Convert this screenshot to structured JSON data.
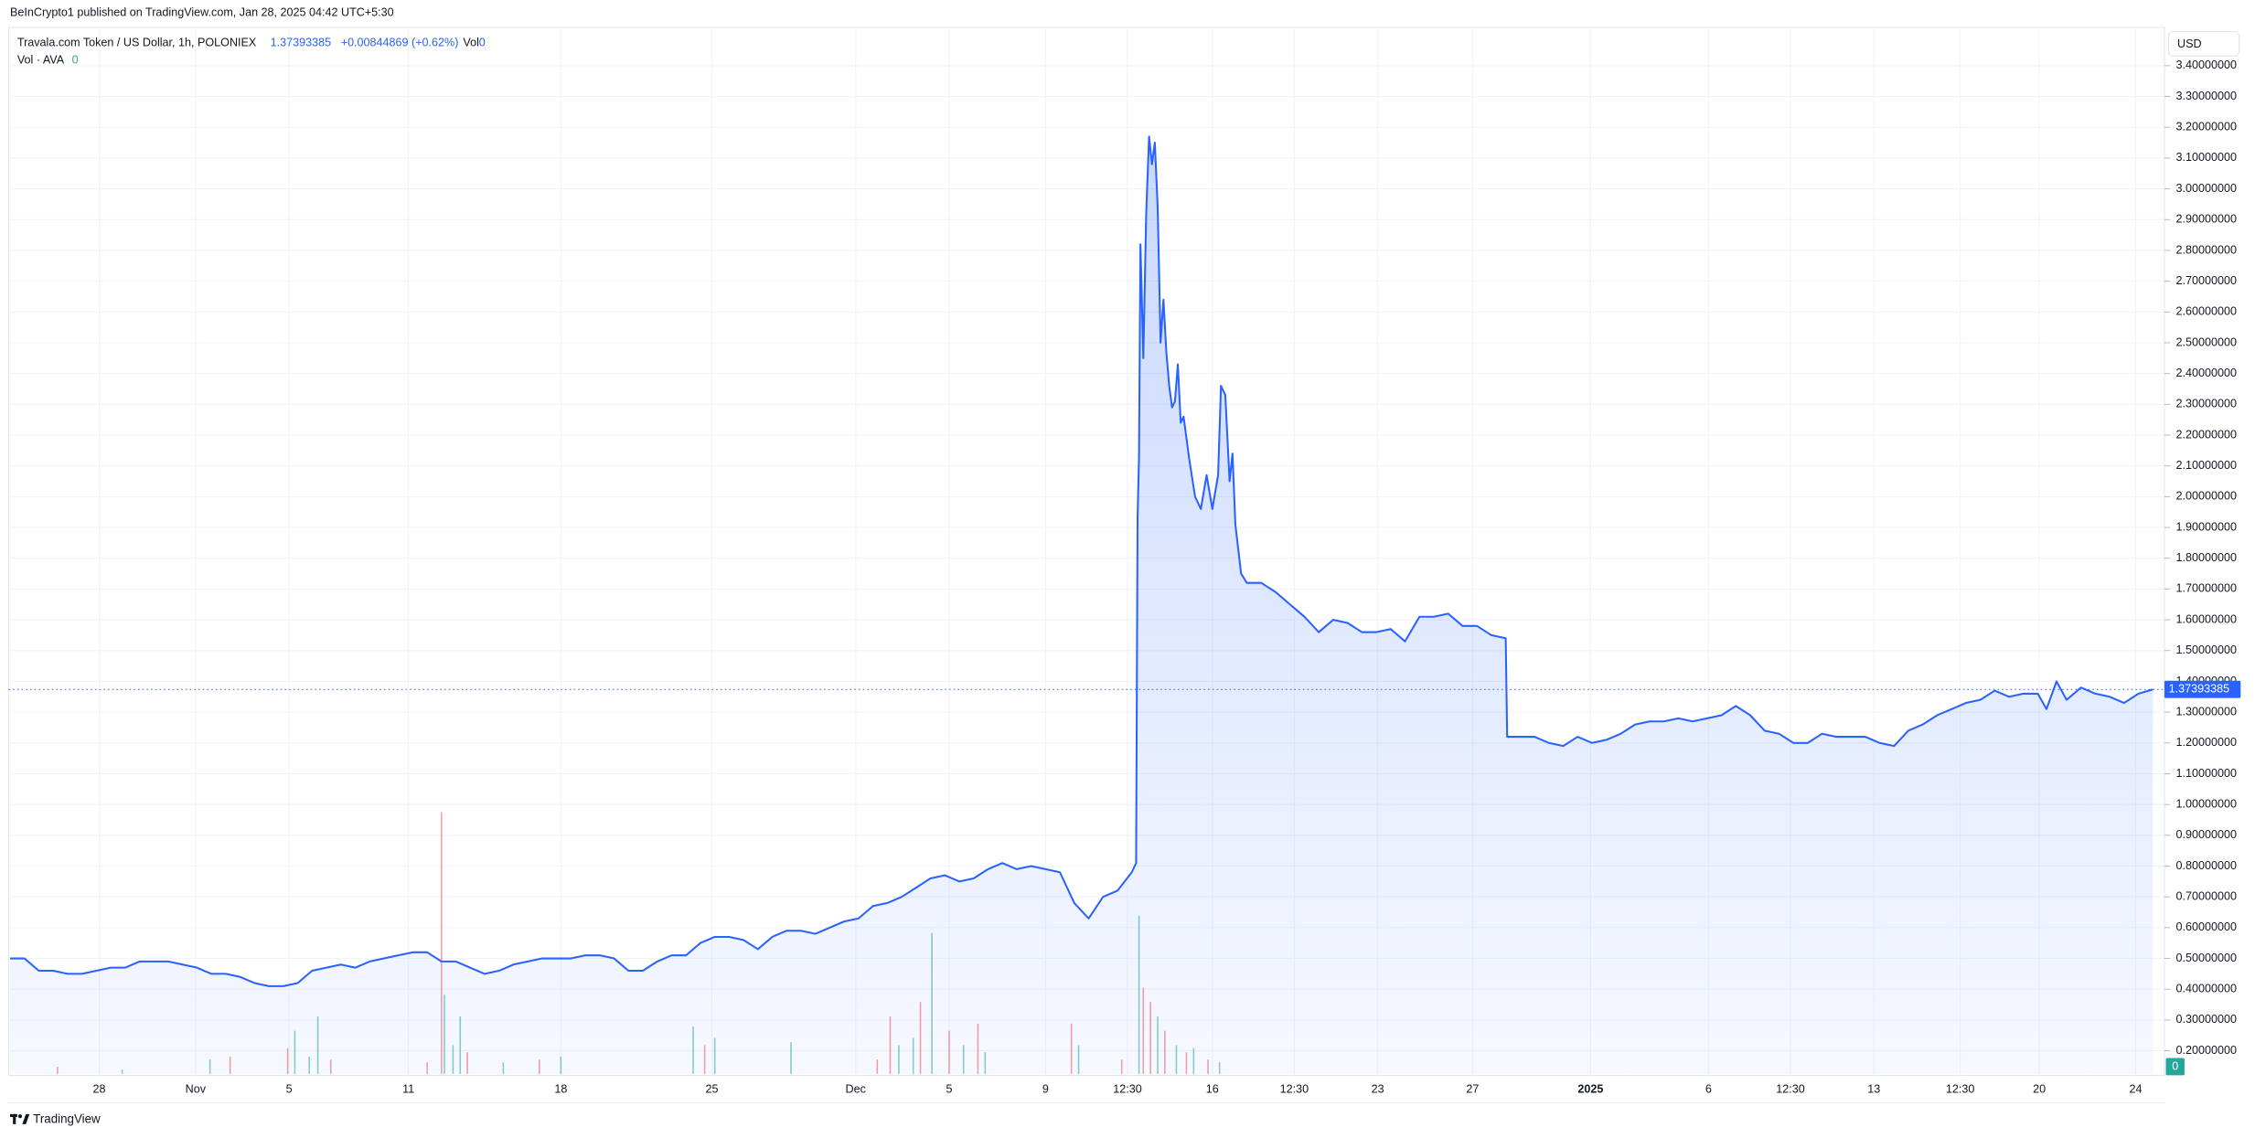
{
  "publisher_line": "BeInCrypto1 published on TradingView.com, Jan 28, 2025 04:42 UTC+5:30",
  "symbol": "Travala.com Token / US Dollar, 1h, POLONIEX",
  "last_price": 1.37393385,
  "change": "+0.00844869 (+0.62%)",
  "vol_label": "Vol",
  "vol_value": 0,
  "vol_indicator": "Vol · AVA",
  "vol_indicator_value": 0,
  "currency": "USD",
  "brand": "TradingView",
  "chart_data": {
    "type": "area",
    "series": [
      {
        "color": "#2962ff",
        "x": [
          0,
          10,
          20,
          30,
          40,
          50,
          60,
          70,
          80,
          90,
          100,
          110,
          120,
          130,
          140,
          150,
          160,
          170,
          180,
          190,
          200,
          210,
          220,
          230,
          240,
          250,
          260,
          270,
          280,
          290,
          300,
          310,
          320,
          330,
          340,
          350,
          360,
          370,
          380,
          390,
          400,
          410,
          420,
          430,
          440,
          450,
          460,
          470,
          480,
          490,
          500,
          510,
          520,
          530,
          540,
          550,
          560,
          570,
          580,
          590,
          600,
          610,
          620,
          630,
          640,
          650,
          660,
          670,
          680,
          690,
          700,
          710,
          720,
          730,
          740,
          750,
          760,
          770,
          780,
          783,
          784,
          785,
          786,
          788,
          790,
          792,
          794,
          796,
          798,
          800,
          802,
          804,
          806,
          808,
          810,
          812,
          814,
          816,
          820,
          824,
          828,
          832,
          836,
          840,
          842,
          845,
          848,
          850,
          852,
          856,
          860,
          870,
          880,
          890,
          900,
          910,
          920,
          930,
          940,
          950,
          960,
          970,
          980,
          990,
          1000,
          1010,
          1020,
          1030,
          1040,
          1041,
          1050,
          1060,
          1070,
          1080,
          1090,
          1100,
          1110,
          1120,
          1130,
          1140,
          1150,
          1160,
          1170,
          1180,
          1190,
          1200,
          1210,
          1220,
          1230,
          1240,
          1250,
          1260,
          1270,
          1280,
          1290,
          1300,
          1310,
          1320,
          1330,
          1340,
          1350,
          1360,
          1370,
          1380,
          1390,
          1400,
          1410,
          1416,
          1423,
          1430,
          1440,
          1450,
          1460,
          1470,
          1480,
          1490
        ],
        "values": [
          0.5,
          0.5,
          0.46,
          0.46,
          0.45,
          0.45,
          0.46,
          0.47,
          0.47,
          0.49,
          0.49,
          0.49,
          0.48,
          0.47,
          0.45,
          0.45,
          0.44,
          0.42,
          0.41,
          0.41,
          0.42,
          0.46,
          0.47,
          0.48,
          0.47,
          0.49,
          0.5,
          0.51,
          0.52,
          0.52,
          0.49,
          0.49,
          0.47,
          0.45,
          0.46,
          0.48,
          0.49,
          0.5,
          0.5,
          0.5,
          0.51,
          0.51,
          0.5,
          0.46,
          0.46,
          0.49,
          0.51,
          0.51,
          0.55,
          0.57,
          0.57,
          0.56,
          0.53,
          0.57,
          0.59,
          0.59,
          0.58,
          0.6,
          0.62,
          0.63,
          0.67,
          0.68,
          0.7,
          0.73,
          0.76,
          0.77,
          0.75,
          0.76,
          0.79,
          0.81,
          0.79,
          0.8,
          0.79,
          0.78,
          0.68,
          0.63,
          0.7,
          0.72,
          0.78,
          0.81,
          1.93,
          2.13,
          2.82,
          2.45,
          2.92,
          3.17,
          3.08,
          3.15,
          2.94,
          2.5,
          2.64,
          2.47,
          2.36,
          2.29,
          2.31,
          2.43,
          2.24,
          2.26,
          2.12,
          2.0,
          1.96,
          2.07,
          1.96,
          2.07,
          2.36,
          2.33,
          2.05,
          2.14,
          1.91,
          1.75,
          1.72,
          1.72,
          1.69,
          1.65,
          1.61,
          1.56,
          1.6,
          1.59,
          1.56,
          1.56,
          1.57,
          1.53,
          1.61,
          1.61,
          1.62,
          1.58,
          1.58,
          1.55,
          1.54,
          1.22,
          1.22,
          1.22,
          1.2,
          1.19,
          1.22,
          1.2,
          1.21,
          1.23,
          1.26,
          1.27,
          1.27,
          1.28,
          1.27,
          1.28,
          1.29,
          1.32,
          1.29,
          1.24,
          1.23,
          1.2,
          1.2,
          1.23,
          1.22,
          1.22,
          1.22,
          1.2,
          1.19,
          1.24,
          1.26,
          1.29,
          1.31,
          1.33,
          1.34,
          1.37,
          1.35,
          1.36,
          1.36,
          1.31,
          1.4,
          1.34,
          1.38,
          1.36,
          1.35,
          1.33,
          1.36,
          1.37393385
        ]
      }
    ],
    "volume": {
      "x": [
        33,
        78,
        139,
        153,
        193,
        198,
        208,
        214,
        223,
        290,
        300,
        302,
        308,
        313,
        318,
        343,
        368,
        383,
        475,
        483,
        490,
        543,
        603,
        612,
        618,
        628,
        633,
        641,
        653,
        663,
        673,
        678,
        738,
        743,
        773,
        785,
        788,
        793,
        798,
        803,
        811,
        818,
        823,
        833,
        841
      ],
      "values": [
        0.025,
        0.015,
        0.05,
        0.06,
        0.09,
        0.15,
        0.06,
        0.2,
        0.05,
        0.04,
        0.91,
        0.275,
        0.1,
        0.2,
        0.075,
        0.04,
        0.05,
        0.06,
        0.165,
        0.1,
        0.125,
        0.11,
        0.05,
        0.2,
        0.1,
        0.125,
        0.25,
        0.49,
        0.15,
        0.1,
        0.175,
        0.075,
        0.175,
        0.1,
        0.05,
        0.55,
        0.3,
        0.25,
        0.2,
        0.15,
        0.1,
        0.075,
        0.09,
        0.05,
        0.04
      ],
      "colors": [
        "#ef5350",
        "#26a69a",
        "#26a69a",
        "#ef5350",
        "#ef5350",
        "#26a69a",
        "#26a69a",
        "#26a69a",
        "#ef5350",
        "#ef5350",
        "#ef5350",
        "#26a69a",
        "#26a69a",
        "#26a69a",
        "#ef5350",
        "#26a69a",
        "#ef5350",
        "#26a69a",
        "#26a69a",
        "#ef5350",
        "#26a69a",
        "#26a69a",
        "#ef5350",
        "#ef5350",
        "#26a69a",
        "#26a69a",
        "#ef5350",
        "#26a69a",
        "#ef5350",
        "#26a69a",
        "#ef5350",
        "#26a69a",
        "#ef5350",
        "#26a69a",
        "#ef5350",
        "#26a69a",
        "#ef5350",
        "#ef5350",
        "#26a69a",
        "#ef5350",
        "#26a69a",
        "#ef5350",
        "#26a69a",
        "#ef5350",
        "#26a69a"
      ],
      "y2lim": [
        0,
        1
      ]
    },
    "xlim": [
      0,
      1490
    ],
    "xticks": [
      {
        "value": 62,
        "label": "28"
      },
      {
        "value": 129,
        "label": "Nov"
      },
      {
        "value": 194,
        "label": "5"
      },
      {
        "value": 277,
        "label": "11"
      },
      {
        "value": 383,
        "label": "18"
      },
      {
        "value": 488,
        "label": "25"
      },
      {
        "value": 588,
        "label": "Dec"
      },
      {
        "value": 653,
        "label": "5"
      },
      {
        "value": 720,
        "label": "9"
      },
      {
        "value": 777,
        "label": "12:30"
      },
      {
        "value": 836,
        "label": "16"
      },
      {
        "value": 893,
        "label": "12:30"
      },
      {
        "value": 951,
        "label": "23"
      },
      {
        "value": 1017,
        "label": "27"
      },
      {
        "value": 1099,
        "label": "2025"
      },
      {
        "value": 1181,
        "label": "6"
      },
      {
        "value": 1238,
        "label": "12:30"
      },
      {
        "value": 1296,
        "label": "13"
      },
      {
        "value": 1356,
        "label": "12:30"
      },
      {
        "value": 1411,
        "label": "20"
      },
      {
        "value": 1478,
        "label": "24"
      }
    ],
    "ylim": [
      0.125,
      3.52
    ],
    "yticks": [
      {
        "value": 0.2,
        "label": "0.20000000"
      },
      {
        "value": 0.3,
        "label": "0.30000000"
      },
      {
        "value": 0.4,
        "label": "0.40000000"
      },
      {
        "value": 0.5,
        "label": "0.50000000"
      },
      {
        "value": 0.6,
        "label": "0.60000000"
      },
      {
        "value": 0.7,
        "label": "0.70000000"
      },
      {
        "value": 0.8,
        "label": "0.80000000"
      },
      {
        "value": 0.9,
        "label": "0.90000000"
      },
      {
        "value": 1.0,
        "label": "1.00000000"
      },
      {
        "value": 1.1,
        "label": "1.10000000"
      },
      {
        "value": 1.2,
        "label": "1.20000000"
      },
      {
        "value": 1.3,
        "label": "1.30000000"
      },
      {
        "value": 1.4,
        "label": "1.40000000"
      },
      {
        "value": 1.5,
        "label": "1.50000000"
      },
      {
        "value": 1.6,
        "label": "1.60000000"
      },
      {
        "value": 1.7,
        "label": "1.70000000"
      },
      {
        "value": 1.8,
        "label": "1.80000000"
      },
      {
        "value": 1.9,
        "label": "1.90000000"
      },
      {
        "value": 2.0,
        "label": "2.00000000"
      },
      {
        "value": 2.1,
        "label": "2.10000000"
      },
      {
        "value": 2.2,
        "label": "2.20000000"
      },
      {
        "value": 2.3,
        "label": "2.30000000"
      },
      {
        "value": 2.4,
        "label": "2.40000000"
      },
      {
        "value": 2.5,
        "label": "2.50000000"
      },
      {
        "value": 2.6,
        "label": "2.60000000"
      },
      {
        "value": 2.7,
        "label": "2.70000000"
      },
      {
        "value": 2.8,
        "label": "2.80000000"
      },
      {
        "value": 2.9,
        "label": "2.90000000"
      },
      {
        "value": 3.0,
        "label": "3.00000000"
      },
      {
        "value": 3.1,
        "label": "3.10000000"
      },
      {
        "value": 3.2,
        "label": "3.20000000"
      },
      {
        "value": 3.3,
        "label": "3.30000000"
      },
      {
        "value": 3.4,
        "label": "3.40000000"
      }
    ],
    "grid": true
  }
}
